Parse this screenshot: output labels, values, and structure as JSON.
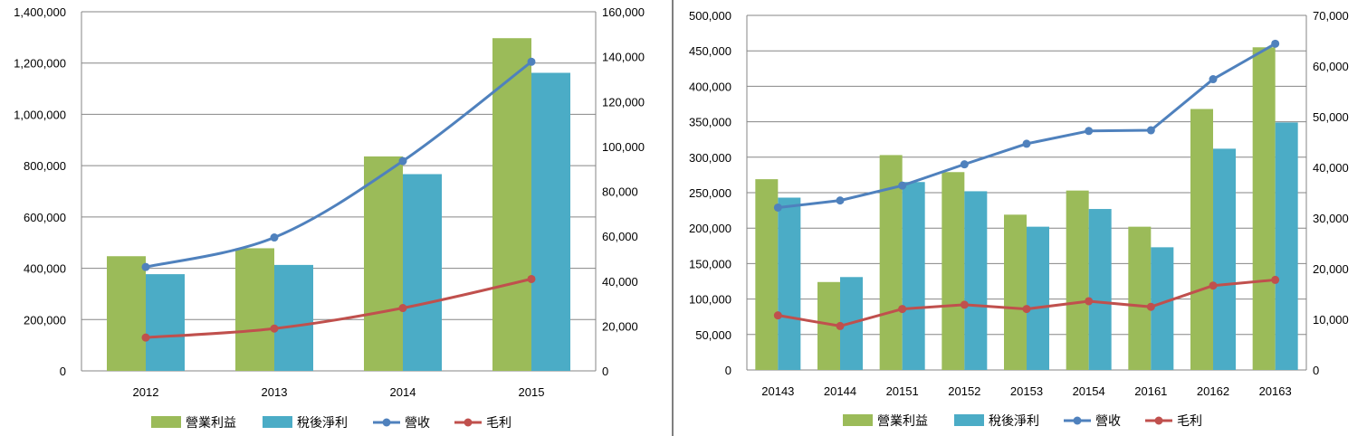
{
  "colors": {
    "operating_income": "#9bbb59",
    "net_income": "#4bacc6",
    "revenue": "#4f81bd",
    "gross_profit": "#c0504d",
    "gridline": "#868686",
    "divider": "#7f7f7f"
  },
  "legend": [
    "營業利益",
    "稅後淨利",
    "營收",
    "毛利"
  ],
  "chart_data": [
    {
      "type": "bar",
      "categories": [
        "2012",
        "2013",
        "2014",
        "2015"
      ],
      "ylim_left": [
        0,
        1400000
      ],
      "yticks_left": [
        "0",
        "200,000",
        "400,000",
        "600,000",
        "800,000",
        "1,000,000",
        "1,200,000",
        "1,400,000"
      ],
      "ylim_right": [
        0,
        160000
      ],
      "yticks_right": [
        "0",
        "20,000",
        "40,000",
        "60,000",
        "80,000",
        "100,000",
        "120,000",
        "140,000",
        "160,000"
      ],
      "grid": true,
      "legend_position": "bottom",
      "series": [
        {
          "name": "營業利益",
          "type": "bar",
          "axis": "left",
          "values": [
            447000,
            478000,
            836000,
            1297000
          ]
        },
        {
          "name": "稅後淨利",
          "type": "bar",
          "axis": "left",
          "values": [
            377000,
            413000,
            767000,
            1162000
          ]
        },
        {
          "name": "營收",
          "type": "line",
          "axis": "left",
          "values": [
            405000,
            520000,
            818000,
            1205000
          ]
        },
        {
          "name": "毛利",
          "type": "line",
          "axis": "left",
          "values": [
            130000,
            165000,
            245000,
            358000
          ]
        }
      ]
    },
    {
      "type": "bar",
      "categories": [
        "20143",
        "20144",
        "20151",
        "20152",
        "20153",
        "20154",
        "20161",
        "20162",
        "20163"
      ],
      "ylim_left": [
        0,
        500000
      ],
      "yticks_left": [
        "0",
        "50,000",
        "100,000",
        "150,000",
        "200,000",
        "250,000",
        "300,000",
        "350,000",
        "400,000",
        "450,000",
        "500,000"
      ],
      "ylim_right": [
        0,
        70000
      ],
      "yticks_right": [
        "0",
        "10,000",
        "20,000",
        "30,000",
        "40,000",
        "50,000",
        "60,000",
        "70,000"
      ],
      "grid": true,
      "legend_position": "bottom",
      "series": [
        {
          "name": "營業利益",
          "type": "bar",
          "axis": "left",
          "values": [
            269000,
            124000,
            303000,
            279000,
            219000,
            253000,
            202000,
            368000,
            455000
          ]
        },
        {
          "name": "稅後淨利",
          "type": "bar",
          "axis": "left",
          "values": [
            243000,
            131000,
            265000,
            252000,
            202000,
            227000,
            173000,
            312000,
            349000
          ]
        },
        {
          "name": "營收",
          "type": "line",
          "axis": "left",
          "values": [
            229000,
            239000,
            260000,
            290000,
            319000,
            337000,
            338000,
            410000,
            460000
          ]
        },
        {
          "name": "毛利",
          "type": "line",
          "axis": "left",
          "values": [
            77000,
            62000,
            86000,
            92000,
            86000,
            97000,
            89000,
            119000,
            127000
          ]
        }
      ]
    }
  ]
}
